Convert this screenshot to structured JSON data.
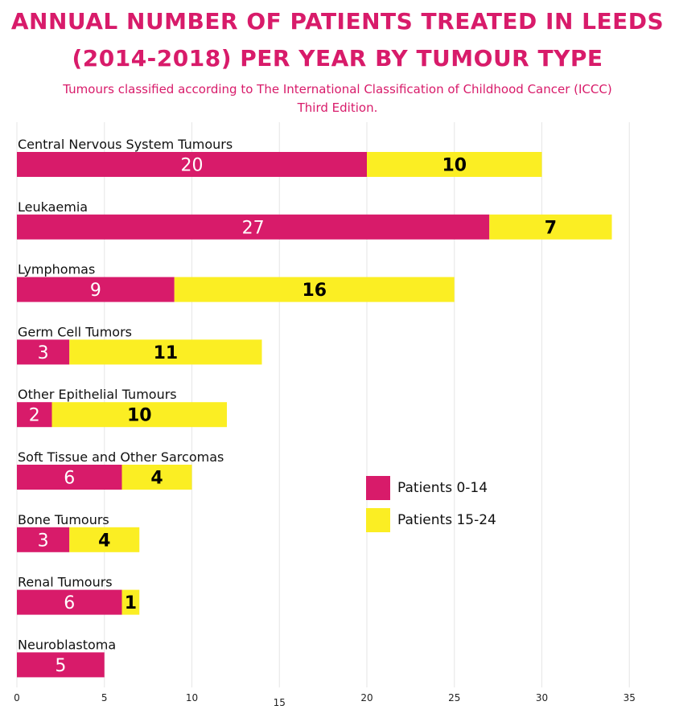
{
  "title_line1": "ANNUAL NUMBER OF PATIENTS TREATED IN LEEDS",
  "title_line2": "(2014-2018) PER YEAR BY TUMOUR TYPE",
  "subtitle_line1": "Tumours classified according to The International Classification of Childhood Cancer (ICCC)",
  "subtitle_line2": "Third Edition.",
  "colors": {
    "series1": "#d81b6a",
    "series2": "#fbee23",
    "grid": "#e6e6e6"
  },
  "chart_data": {
    "type": "bar",
    "orientation": "horizontal",
    "stacked": true,
    "categories": [
      "Central Nervous System Tumours",
      "Leukaemia",
      "Lymphomas",
      "Germ Cell Tumors",
      "Other Epithelial Tumours",
      "Soft Tissue and Other Sarcomas",
      "Bone Tumours",
      "Renal Tumours",
      "Neuroblastoma"
    ],
    "series": [
      {
        "name": "Patients 0-14",
        "values": [
          20,
          27,
          9,
          3,
          2,
          6,
          3,
          6,
          5
        ],
        "color": "#d81b6a"
      },
      {
        "name": "Patients 15-24",
        "values": [
          10,
          7,
          16,
          11,
          10,
          4,
          4,
          1,
          0
        ],
        "color": "#fbee23"
      }
    ],
    "x_ticks": [
      0,
      5,
      10,
      15,
      20,
      25,
      30,
      35
    ],
    "xlim": [
      0,
      35
    ],
    "grid": true,
    "legend_position": "center-right"
  }
}
